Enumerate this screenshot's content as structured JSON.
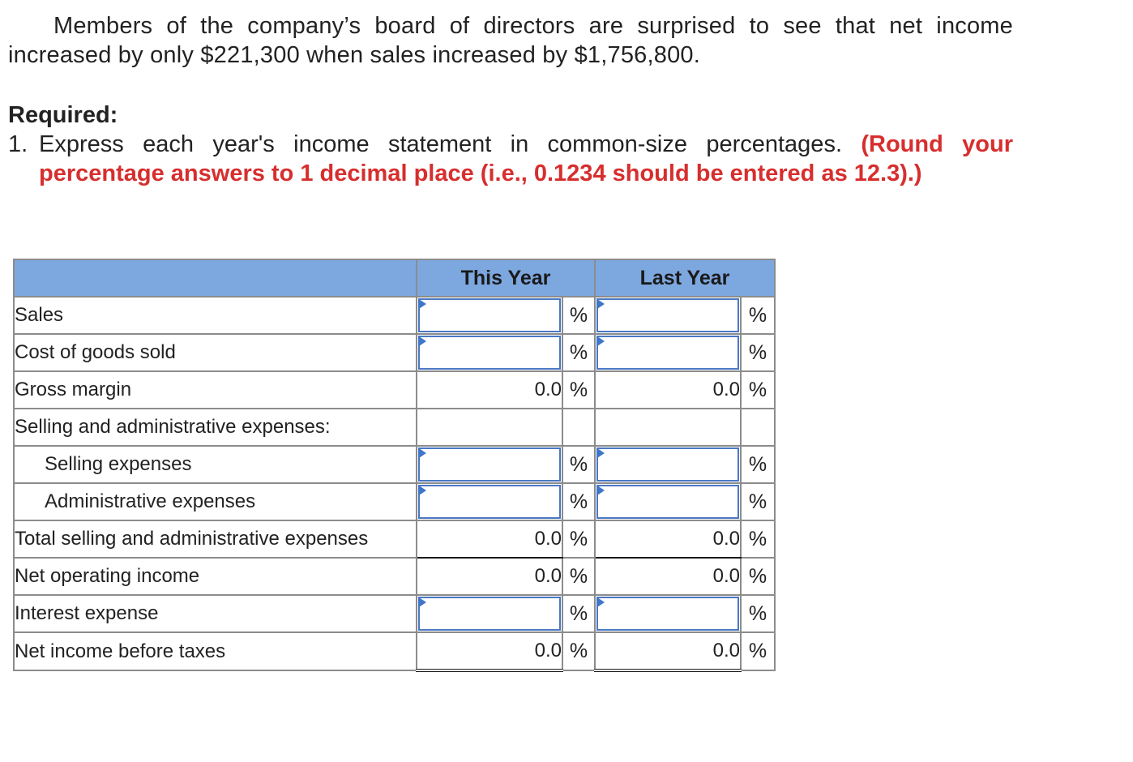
{
  "intro": {
    "line1": "Members of the company’s board of directors are surprised to see that net income",
    "line2": "increased by only $221,300 when sales increased by $1,756,800."
  },
  "required": {
    "heading": "Required:",
    "number": "1.",
    "text": "Express each year's income statement in common-size percentages.",
    "note_line1": "(Round your",
    "note_line2": "percentage answers to 1 decimal place (i.e., 0.1234 should be entered as 12.3).)"
  },
  "table": {
    "col_this_year": "This Year",
    "col_last_year": "Last Year",
    "pct_symbol": "%",
    "rows": [
      {
        "label": "Sales",
        "this": "",
        "last": ""
      },
      {
        "label": "Cost of goods sold",
        "this": "",
        "last": ""
      },
      {
        "label": "Gross margin",
        "this": "0.0",
        "last": "0.0"
      },
      {
        "label": "Selling and administrative expenses:"
      },
      {
        "label": "Selling expenses",
        "this": "",
        "last": ""
      },
      {
        "label": "Administrative expenses",
        "this": "",
        "last": ""
      },
      {
        "label": "Total selling and administrative expenses",
        "this": "0.0",
        "last": "0.0"
      },
      {
        "label": "Net operating income",
        "this": "0.0",
        "last": "0.0"
      },
      {
        "label": "Interest expense",
        "this": "",
        "last": ""
      },
      {
        "label": "Net income before taxes",
        "this": "0.0",
        "last": "0.0"
      }
    ]
  }
}
